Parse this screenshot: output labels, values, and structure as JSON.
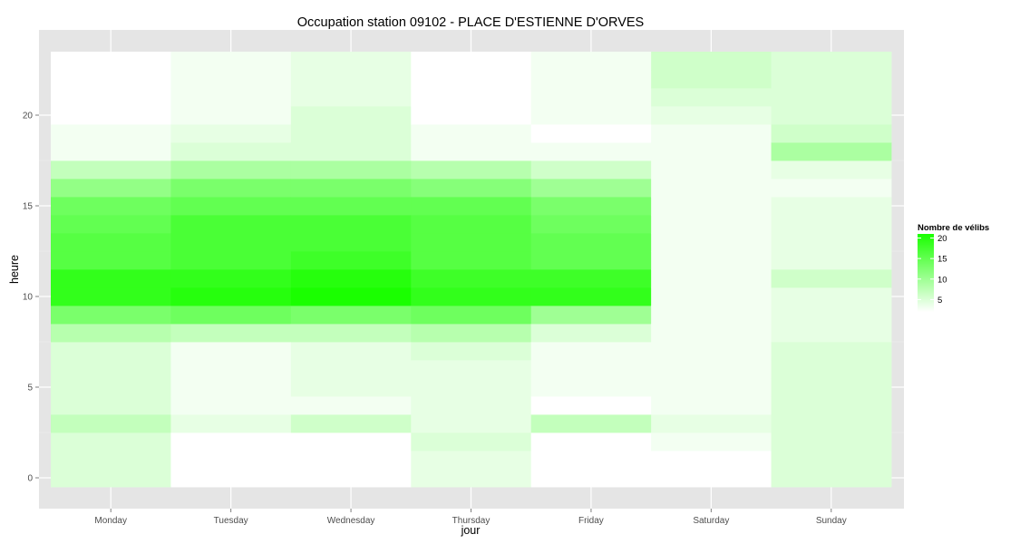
{
  "chart_data": {
    "type": "heatmap",
    "title": "Occupation station 09102 - PLACE D'ESTIENNE D'ORVES",
    "xlabel": "jour",
    "ylabel": "heure",
    "categories": [
      "Monday",
      "Tuesday",
      "Wednesday",
      "Thursday",
      "Friday",
      "Saturday",
      "Sunday"
    ],
    "hours": [
      0,
      1,
      2,
      3,
      4,
      5,
      6,
      7,
      8,
      9,
      10,
      11,
      12,
      13,
      14,
      15,
      16,
      17,
      18,
      19,
      20,
      21,
      22,
      23
    ],
    "yticks": [
      0,
      5,
      10,
      15,
      20
    ],
    "ylim": [
      -0.5,
      23.5
    ],
    "grid": true,
    "legend": {
      "title": "Nombre de vélibs",
      "position": "right",
      "breaks": [
        5,
        10,
        15,
        20
      ],
      "min": 2,
      "max": 21,
      "color_low": "#ffffff",
      "color_high": "#1aff00"
    },
    "colors": {
      "panel_background": "#e5e5e5",
      "grid_major": "#ffffff",
      "grid_minor": "#f2f2f2"
    },
    "values": [
      [
        5,
        5,
        5,
        7,
        5,
        5,
        5,
        5,
        8,
        13,
        19,
        19,
        16,
        16,
        15,
        14,
        11,
        7,
        3,
        3,
        2,
        2,
        2,
        2
      ],
      [
        2,
        2,
        2,
        4,
        3,
        3,
        3,
        3,
        7,
        14,
        20,
        19,
        17,
        17,
        17,
        15,
        13,
        9,
        5,
        4,
        3,
        3,
        3,
        3
      ],
      [
        2,
        2,
        2,
        6,
        3,
        4,
        4,
        4,
        7,
        13,
        21,
        20,
        18,
        17,
        17,
        15,
        13,
        9,
        5,
        5,
        5,
        4,
        4,
        4
      ],
      [
        4,
        4,
        5,
        4,
        4,
        4,
        4,
        5,
        8,
        14,
        19,
        18,
        16,
        16,
        16,
        15,
        12,
        8,
        3,
        3,
        2,
        2,
        2,
        2
      ],
      [
        2,
        2,
        2,
        7,
        2,
        3,
        3,
        3,
        5,
        10,
        19,
        18,
        15,
        15,
        14,
        13,
        10,
        6,
        3,
        2,
        3,
        3,
        3,
        3
      ],
      [
        2,
        2,
        3,
        4,
        3,
        3,
        3,
        3,
        3,
        3,
        3,
        3,
        3,
        3,
        3,
        3,
        3,
        3,
        3,
        3,
        4,
        5,
        6,
        6
      ],
      [
        5,
        5,
        5,
        5,
        5,
        5,
        5,
        5,
        4,
        4,
        4,
        6,
        4,
        4,
        4,
        4,
        3,
        4,
        9,
        6,
        5,
        5,
        5,
        5
      ]
    ]
  }
}
